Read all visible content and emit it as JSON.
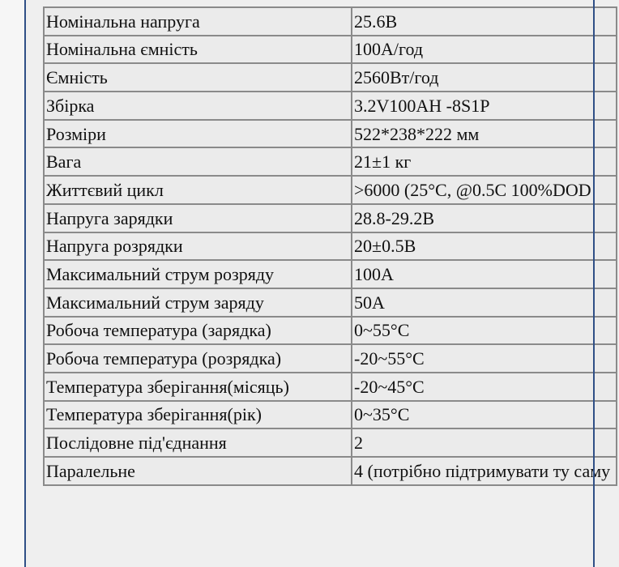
{
  "specs": [
    {
      "label": "Номінальна напруга",
      "value": "25.6В"
    },
    {
      "label": "Номінальна ємність",
      "value": "100А/год"
    },
    {
      "label": "Ємність",
      "value": "2560Вт/год"
    },
    {
      "label": "Збірка",
      "value": "3.2V100AH -8S1P"
    },
    {
      "label": "Розміри",
      "value": "522*238*222 мм"
    },
    {
      "label": "Вага",
      "value": "21±1 кг"
    },
    {
      "label": "Життєвий цикл",
      "value": ">6000 (25°C, @0.5C 100%DOD"
    },
    {
      "label": "Напруга зарядки",
      "value": "28.8-29.2В"
    },
    {
      "label": "Напруга розрядки",
      "value": "20±0.5В"
    },
    {
      "label": "Максимальний струм розряду",
      "value": "100А"
    },
    {
      "label": "Максимальний струм заряду",
      "value": "50А"
    },
    {
      "label": "Робоча температура (зарядка)",
      "value": "0~55°C"
    },
    {
      "label": "Робоча температура (розрядка)",
      "value": "-20~55°C"
    },
    {
      "label": "Температура зберігання(місяць)",
      "value": "-20~45°C"
    },
    {
      "label": "Температура зберігання(рік)",
      "value": "0~35°C"
    },
    {
      "label": "Послідовне під'єднання",
      "value": "2"
    },
    {
      "label": "Паралельне",
      "value": "4 (потрібно підтримувати ту саму"
    }
  ]
}
